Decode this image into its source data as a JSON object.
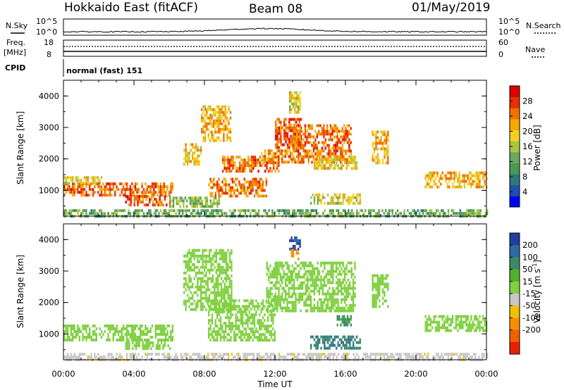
{
  "header": {
    "title": "Hokkaido East (fitACF)",
    "beam": "Beam 08",
    "date": "01/May/2019"
  },
  "top_panels": {
    "nsky_label": "N.Sky",
    "nsky_ticks": [
      "10^5",
      "10^0"
    ],
    "nsearch_label": "N.Search",
    "freq_label_line1": "Freq.",
    "freq_label_line2": "[MHz]",
    "freq_ticks": [
      "18",
      "8"
    ],
    "nave_ticks": [
      "60",
      "0"
    ],
    "nave_label": "Nave",
    "cpid_label": "CPID",
    "cpid_text": "normal (fast) 151"
  },
  "chart_data": [
    {
      "type": "heatmap",
      "name": "power",
      "ylabel": "Slant Range [km]",
      "xlabel": "",
      "x_ticks": [
        "00:00",
        "04:00",
        "08:00",
        "12:00",
        "16:00",
        "20:00",
        "00:00"
      ],
      "x_range_hours": [
        0,
        24
      ],
      "y_ticks": [
        "1000",
        "2000",
        "3000",
        "4000"
      ],
      "ylim": [
        180,
        4500
      ],
      "colorbar": {
        "label": "Power [dB]",
        "ticks": [
          "4",
          "8",
          "12",
          "16",
          "20",
          "24",
          "28"
        ],
        "range": [
          0,
          32
        ],
        "colors": [
          "#0000ff",
          "#1f4fb0",
          "#2a7a78",
          "#4a9a55",
          "#6aa85a",
          "#a8c640",
          "#f3d020",
          "#f5a800",
          "#f07000",
          "#e83000",
          "#e00000"
        ]
      },
      "regions": [
        {
          "x0": 0.0,
          "x1": 6.2,
          "y0": 850,
          "y1": 1250,
          "level": 26
        },
        {
          "x0": 0.0,
          "x1": 2.2,
          "y0": 1200,
          "y1": 1450,
          "level": 18
        },
        {
          "x0": 3.5,
          "x1": 6.0,
          "y0": 550,
          "y1": 850,
          "level": 27
        },
        {
          "x0": 6.0,
          "x1": 8.8,
          "y0": 500,
          "y1": 800,
          "level": 14
        },
        {
          "x0": 6.8,
          "x1": 7.8,
          "y0": 1800,
          "y1": 2500,
          "level": 20
        },
        {
          "x0": 7.8,
          "x1": 9.5,
          "y0": 2600,
          "y1": 3700,
          "level": 22
        },
        {
          "x0": 8.2,
          "x1": 11.5,
          "y0": 800,
          "y1": 1400,
          "level": 25
        },
        {
          "x0": 9.0,
          "x1": 12.2,
          "y0": 1600,
          "y1": 2100,
          "level": 26
        },
        {
          "x0": 11.2,
          "x1": 13.0,
          "y0": 1900,
          "y1": 2300,
          "level": 24
        },
        {
          "x0": 12.0,
          "x1": 13.5,
          "y0": 2400,
          "y1": 3300,
          "level": 27
        },
        {
          "x0": 12.8,
          "x1": 13.4,
          "y0": 3500,
          "y1": 4150,
          "level": 18
        },
        {
          "x0": 13.0,
          "x1": 16.3,
          "y0": 1900,
          "y1": 3100,
          "level": 26
        },
        {
          "x0": 14.2,
          "x1": 16.6,
          "y0": 1700,
          "y1": 2100,
          "level": 20
        },
        {
          "x0": 14.0,
          "x1": 16.8,
          "y0": 550,
          "y1": 900,
          "level": 18
        },
        {
          "x0": 17.5,
          "x1": 18.4,
          "y0": 1900,
          "y1": 2900,
          "level": 22
        },
        {
          "x0": 20.5,
          "x1": 24.0,
          "y0": 1100,
          "y1": 1600,
          "level": 22
        },
        {
          "x0": 0.0,
          "x1": 24.0,
          "y0": 180,
          "y1": 400,
          "level": 12
        }
      ]
    },
    {
      "type": "heatmap",
      "name": "velocity",
      "ylabel": "Slant Range [km]",
      "xlabel": "Time UT",
      "x_ticks": [
        "00:00",
        "04:00",
        "08:00",
        "12:00",
        "16:00",
        "20:00",
        "00:00"
      ],
      "x_range_hours": [
        0,
        24
      ],
      "y_ticks": [
        "1000",
        "2000",
        "3000",
        "4000"
      ],
      "ylim": [
        180,
        4500
      ],
      "colorbar": {
        "label": "Velocity [m s",
        "label_sup": "-1",
        "label_end": "]",
        "ticks": [
          "200",
          "100",
          "50",
          "15",
          "-15",
          "-50",
          "-100",
          "-200"
        ],
        "colors": [
          "#2040a0",
          "#2e6a9e",
          "#3a8a6a",
          "#52b030",
          "#80d040",
          "#c8c8c8",
          "#f5c000",
          "#f59000",
          "#f06000",
          "#e82000"
        ]
      },
      "regions": [
        {
          "x0": 0.0,
          "x1": 6.2,
          "y0": 850,
          "y1": 1300,
          "level": -3
        },
        {
          "x0": 3.5,
          "x1": 6.0,
          "y0": 550,
          "y1": 850,
          "level": -5
        },
        {
          "x0": 6.8,
          "x1": 9.5,
          "y0": 1800,
          "y1": 3700,
          "level": -5
        },
        {
          "x0": 8.2,
          "x1": 12.0,
          "y0": 800,
          "y1": 2100,
          "level": 0
        },
        {
          "x0": 11.5,
          "x1": 16.5,
          "y0": 1700,
          "y1": 3300,
          "level": 0
        },
        {
          "x0": 12.8,
          "x1": 13.4,
          "y0": 3700,
          "y1": 4100,
          "level": 220
        },
        {
          "x0": 12.9,
          "x1": 13.3,
          "y0": 3400,
          "y1": 3700,
          "level": -150
        },
        {
          "x0": 14.0,
          "x1": 16.8,
          "y0": 550,
          "y1": 950,
          "level": 90
        },
        {
          "x0": 15.5,
          "x1": 16.3,
          "y0": 1300,
          "y1": 1600,
          "level": 60
        },
        {
          "x0": 17.5,
          "x1": 18.4,
          "y0": 1900,
          "y1": 2900,
          "level": 0
        },
        {
          "x0": 20.5,
          "x1": 24.0,
          "y0": 1100,
          "y1": 1600,
          "level": 0
        },
        {
          "x0": 0.0,
          "x1": 24.0,
          "y0": 180,
          "y1": 400,
          "level": -40
        }
      ]
    }
  ]
}
